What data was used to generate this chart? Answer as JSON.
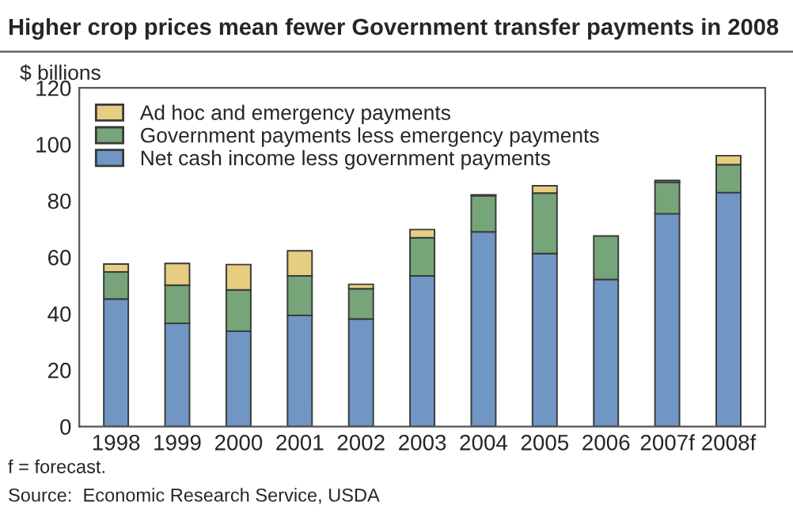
{
  "chart_data": {
    "type": "bar",
    "title": "Higher crop prices mean fewer Government transfer payments in 2008",
    "ylabel": "$ billions",
    "categories": [
      "1998",
      "1999",
      "2000",
      "2001",
      "2002",
      "2003",
      "2004",
      "2005",
      "2006",
      "2007f",
      "2008f"
    ],
    "stacked": true,
    "series": [
      {
        "name": "Net cash income less government payments",
        "color": "#7096c4",
        "values": [
          45.2,
          36.6,
          33.8,
          39.4,
          38.1,
          53.4,
          69.0,
          61.3,
          52.1,
          75.4,
          82.9
        ]
      },
      {
        "name": "Government payments less emergency payments",
        "color": "#76a57a",
        "values": [
          9.6,
          13.5,
          14.6,
          14.0,
          10.7,
          13.5,
          12.8,
          21.4,
          15.4,
          11.2,
          9.9
        ]
      },
      {
        "name": "Ad hoc and emergency payments",
        "color": "#e6cd82",
        "values": [
          2.8,
          7.7,
          9.0,
          8.9,
          1.6,
          2.9,
          0.3,
          2.6,
          null,
          0.6,
          3.2
        ]
      }
    ],
    "ylim": [
      0,
      120
    ],
    "yticks": [
      0,
      20,
      40,
      60,
      80,
      100,
      120
    ],
    "grid": false,
    "legend": "top left",
    "annotations": [
      "f = forecast.",
      "Source:  Economic Research Service, USDA"
    ]
  }
}
